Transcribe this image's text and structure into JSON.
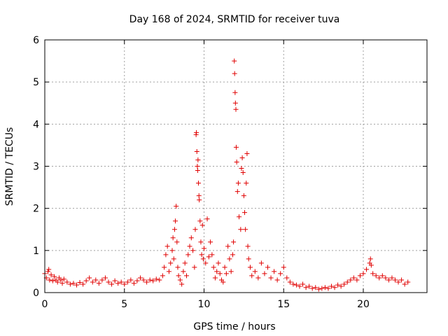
{
  "chart_data": {
    "type": "scatter",
    "title": "Day 168 of 2024, SRMTID for receiver tuva",
    "xlabel": "GPS time / hours",
    "ylabel": "SRMTID / TECUs",
    "xlim": [
      0,
      24
    ],
    "ylim": [
      0,
      6
    ],
    "xticks": [
      0,
      5,
      10,
      15,
      20
    ],
    "yticks": [
      0,
      1,
      2,
      3,
      4,
      5,
      6
    ],
    "grid": true,
    "marker": "plus",
    "series": [
      {
        "name": "SRMTID",
        "color": "#e00000",
        "points": [
          [
            0.0,
            0.45
          ],
          [
            0.1,
            0.35
          ],
          [
            0.2,
            0.5
          ],
          [
            0.25,
            0.55
          ],
          [
            0.3,
            0.3
          ],
          [
            0.4,
            0.42
          ],
          [
            0.5,
            0.28
          ],
          [
            0.6,
            0.38
          ],
          [
            0.7,
            0.3
          ],
          [
            0.8,
            0.25
          ],
          [
            0.9,
            0.35
          ],
          [
            1.0,
            0.3
          ],
          [
            1.1,
            0.22
          ],
          [
            1.2,
            0.32
          ],
          [
            1.4,
            0.25
          ],
          [
            1.6,
            0.2
          ],
          [
            1.8,
            0.22
          ],
          [
            2.0,
            0.18
          ],
          [
            2.2,
            0.24
          ],
          [
            2.4,
            0.2
          ],
          [
            2.6,
            0.28
          ],
          [
            2.8,
            0.35
          ],
          [
            3.0,
            0.25
          ],
          [
            3.2,
            0.3
          ],
          [
            3.4,
            0.22
          ],
          [
            3.6,
            0.3
          ],
          [
            3.8,
            0.35
          ],
          [
            4.0,
            0.25
          ],
          [
            4.2,
            0.2
          ],
          [
            4.4,
            0.28
          ],
          [
            4.6,
            0.22
          ],
          [
            4.8,
            0.25
          ],
          [
            5.0,
            0.2
          ],
          [
            5.2,
            0.25
          ],
          [
            5.4,
            0.3
          ],
          [
            5.6,
            0.22
          ],
          [
            5.8,
            0.28
          ],
          [
            6.0,
            0.35
          ],
          [
            6.2,
            0.3
          ],
          [
            6.4,
            0.25
          ],
          [
            6.6,
            0.3
          ],
          [
            6.8,
            0.28
          ],
          [
            7.0,
            0.32
          ],
          [
            7.2,
            0.3
          ],
          [
            7.4,
            0.4
          ],
          [
            7.5,
            0.6
          ],
          [
            7.6,
            0.9
          ],
          [
            7.7,
            1.1
          ],
          [
            7.8,
            0.5
          ],
          [
            7.9,
            0.7
          ],
          [
            8.0,
            1.0
          ],
          [
            8.05,
            1.3
          ],
          [
            8.1,
            0.8
          ],
          [
            8.15,
            1.5
          ],
          [
            8.2,
            1.7
          ],
          [
            8.25,
            2.05
          ],
          [
            8.3,
            1.2
          ],
          [
            8.35,
            0.6
          ],
          [
            8.4,
            0.4
          ],
          [
            8.5,
            0.3
          ],
          [
            8.6,
            0.2
          ],
          [
            8.7,
            0.5
          ],
          [
            8.8,
            0.7
          ],
          [
            8.9,
            0.4
          ],
          [
            9.0,
            0.9
          ],
          [
            9.1,
            1.1
          ],
          [
            9.2,
            1.3
          ],
          [
            9.3,
            1.0
          ],
          [
            9.4,
            0.6
          ],
          [
            9.45,
            1.5
          ],
          [
            9.5,
            3.75
          ],
          [
            9.52,
            3.8
          ],
          [
            9.55,
            3.35
          ],
          [
            9.58,
            3.0
          ],
          [
            9.6,
            2.9
          ],
          [
            9.62,
            3.15
          ],
          [
            9.65,
            2.6
          ],
          [
            9.68,
            2.3
          ],
          [
            9.7,
            2.2
          ],
          [
            9.75,
            1.7
          ],
          [
            9.8,
            1.2
          ],
          [
            9.85,
            0.9
          ],
          [
            9.9,
            1.6
          ],
          [
            9.95,
            0.8
          ],
          [
            10.0,
            1.05
          ],
          [
            10.1,
            0.7
          ],
          [
            10.2,
            1.75
          ],
          [
            10.3,
            0.85
          ],
          [
            10.4,
            1.2
          ],
          [
            10.5,
            0.9
          ],
          [
            10.6,
            0.6
          ],
          [
            10.7,
            0.35
          ],
          [
            10.8,
            0.5
          ],
          [
            10.9,
            0.7
          ],
          [
            11.0,
            0.45
          ],
          [
            11.1,
            0.3
          ],
          [
            11.2,
            0.25
          ],
          [
            11.3,
            0.6
          ],
          [
            11.4,
            0.45
          ],
          [
            11.5,
            1.1
          ],
          [
            11.6,
            0.8
          ],
          [
            11.7,
            0.5
          ],
          [
            11.8,
            0.9
          ],
          [
            11.85,
            1.2
          ],
          [
            11.9,
            5.5
          ],
          [
            11.92,
            5.2
          ],
          [
            11.95,
            4.75
          ],
          [
            11.97,
            4.5
          ],
          [
            12.0,
            4.35
          ],
          [
            12.02,
            3.45
          ],
          [
            12.05,
            3.1
          ],
          [
            12.1,
            2.4
          ],
          [
            12.15,
            2.6
          ],
          [
            12.2,
            1.8
          ],
          [
            12.3,
            1.5
          ],
          [
            12.35,
            2.95
          ],
          [
            12.4,
            3.2
          ],
          [
            12.45,
            2.85
          ],
          [
            12.5,
            2.3
          ],
          [
            12.55,
            1.9
          ],
          [
            12.6,
            1.5
          ],
          [
            12.65,
            2.6
          ],
          [
            12.7,
            3.3
          ],
          [
            12.75,
            1.1
          ],
          [
            12.8,
            0.8
          ],
          [
            12.9,
            0.6
          ],
          [
            13.0,
            0.4
          ],
          [
            13.2,
            0.5
          ],
          [
            13.4,
            0.35
          ],
          [
            13.6,
            0.7
          ],
          [
            13.8,
            0.45
          ],
          [
            14.0,
            0.6
          ],
          [
            14.2,
            0.35
          ],
          [
            14.4,
            0.5
          ],
          [
            14.6,
            0.3
          ],
          [
            14.8,
            0.45
          ],
          [
            15.0,
            0.6
          ],
          [
            15.2,
            0.35
          ],
          [
            15.4,
            0.25
          ],
          [
            15.6,
            0.2
          ],
          [
            15.8,
            0.18
          ],
          [
            16.0,
            0.15
          ],
          [
            16.2,
            0.2
          ],
          [
            16.4,
            0.12
          ],
          [
            16.6,
            0.15
          ],
          [
            16.8,
            0.1
          ],
          [
            17.0,
            0.12
          ],
          [
            17.2,
            0.08
          ],
          [
            17.4,
            0.1
          ],
          [
            17.6,
            0.12
          ],
          [
            17.8,
            0.1
          ],
          [
            18.0,
            0.15
          ],
          [
            18.2,
            0.12
          ],
          [
            18.4,
            0.18
          ],
          [
            18.6,
            0.15
          ],
          [
            18.8,
            0.2
          ],
          [
            19.0,
            0.25
          ],
          [
            19.2,
            0.3
          ],
          [
            19.4,
            0.35
          ],
          [
            19.6,
            0.3
          ],
          [
            19.8,
            0.4
          ],
          [
            20.0,
            0.45
          ],
          [
            20.2,
            0.55
          ],
          [
            20.4,
            0.7
          ],
          [
            20.45,
            0.8
          ],
          [
            20.5,
            0.65
          ],
          [
            20.6,
            0.45
          ],
          [
            20.8,
            0.4
          ],
          [
            21.0,
            0.35
          ],
          [
            21.2,
            0.4
          ],
          [
            21.4,
            0.35
          ],
          [
            21.6,
            0.3
          ],
          [
            21.8,
            0.35
          ],
          [
            22.0,
            0.3
          ],
          [
            22.2,
            0.25
          ],
          [
            22.4,
            0.3
          ],
          [
            22.6,
            0.2
          ],
          [
            22.8,
            0.25
          ]
        ]
      }
    ]
  }
}
